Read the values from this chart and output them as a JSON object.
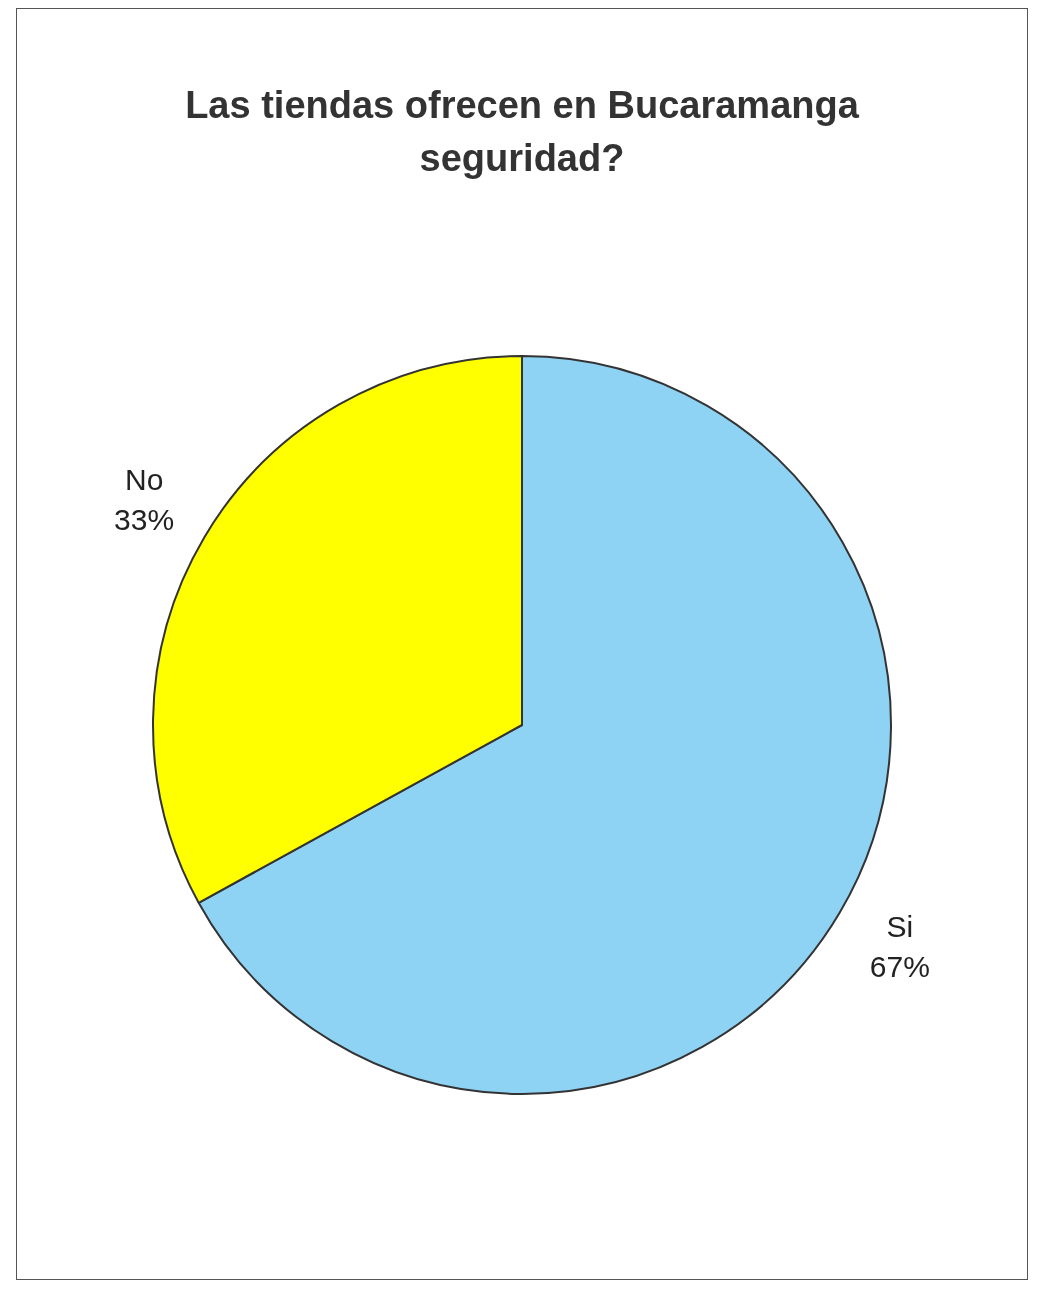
{
  "chart_data": {
    "type": "pie",
    "title": "Las tiendas ofrecen en Bucaramanga seguridad?",
    "categories": [
      "Si",
      "No"
    ],
    "values": [
      67,
      33
    ],
    "colors": [
      "#8fd3f4",
      "#ffff00"
    ],
    "value_labels": [
      "67%",
      "33%"
    ],
    "legend": false
  }
}
